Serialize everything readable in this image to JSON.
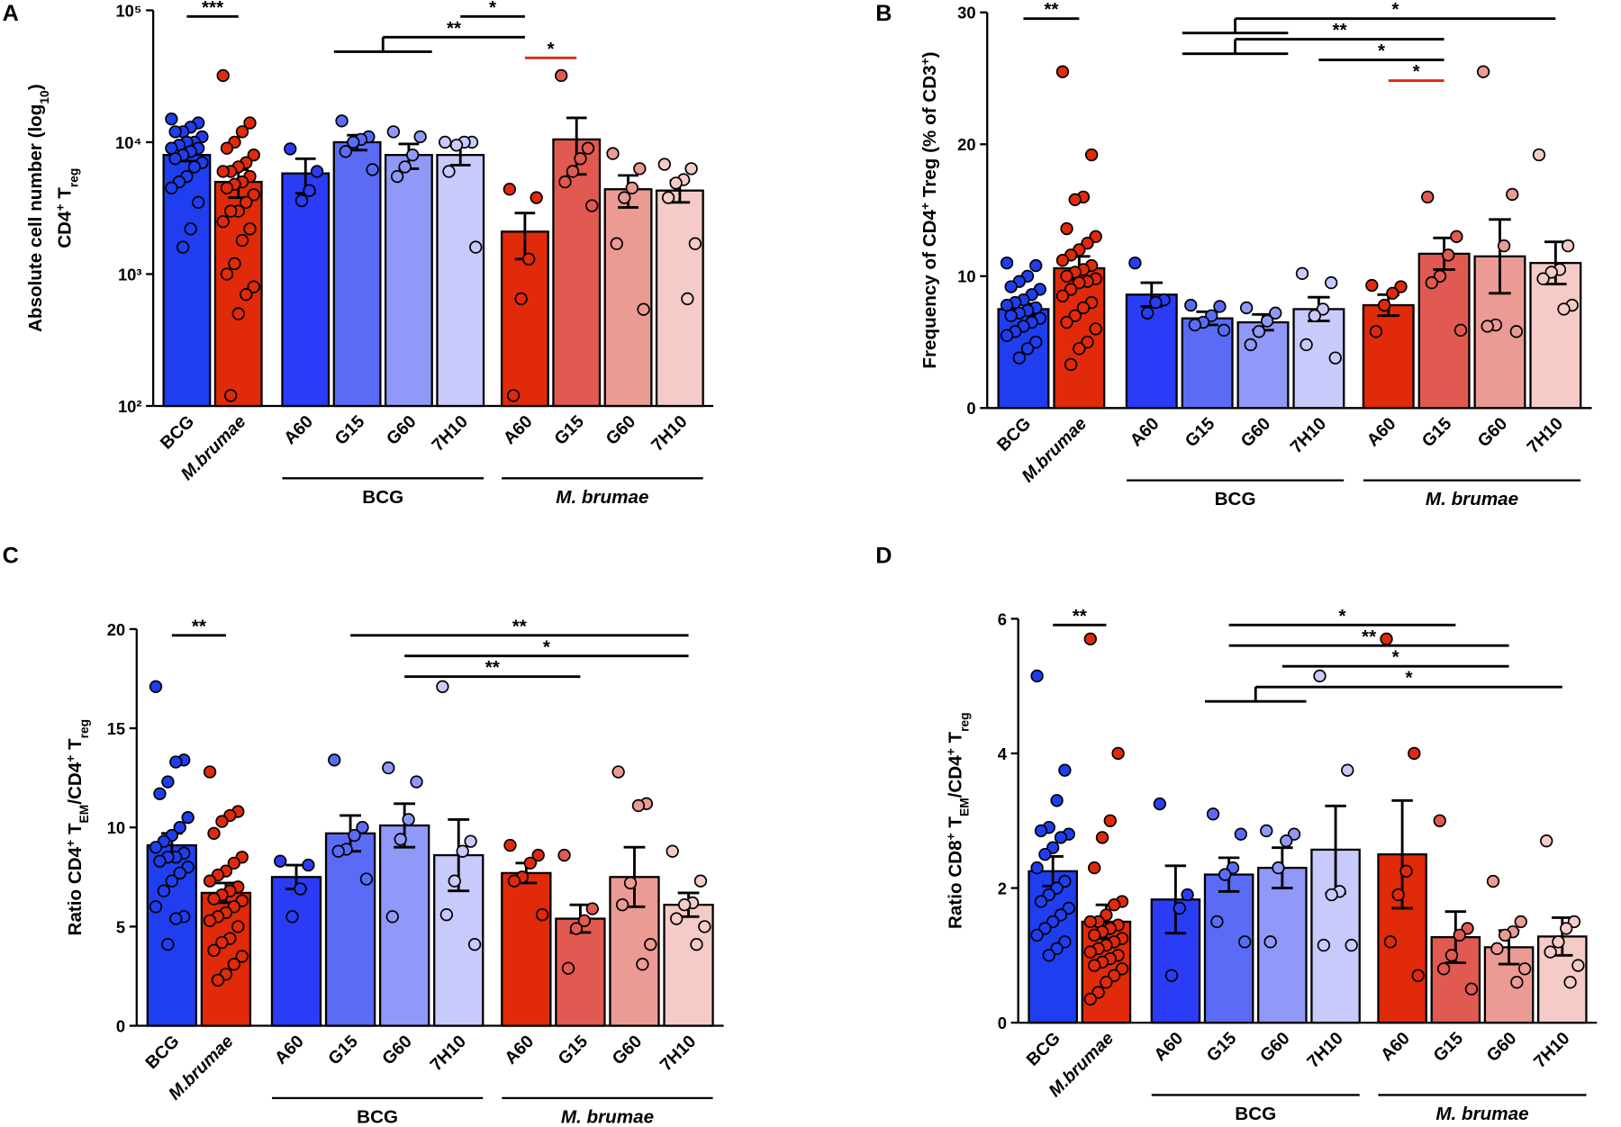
{
  "chart_data": [
    {
      "type": "bar",
      "panel": "A",
      "log": true,
      "ylabel": [
        [
          {
            "text": "Absolute cell number (log"
          },
          {
            "text": "10",
            "script": "sub"
          },
          {
            "text": ")"
          }
        ],
        [
          {
            "text": "CD4"
          },
          {
            "text": "+",
            "script": "sup"
          },
          {
            "text": " T"
          },
          {
            "text": "reg",
            "script": "sub"
          }
        ]
      ],
      "ylim": [
        100,
        100000
      ],
      "yticks": [
        {
          "value": 100,
          "label": "10²"
        },
        {
          "value": 1000,
          "label": "10³"
        },
        {
          "value": 10000,
          "label": "10⁴"
        },
        {
          "value": 100000,
          "label": "10⁵"
        }
      ],
      "categories": [
        "BCG",
        "M.brumae",
        "A60",
        "G15",
        "G60",
        "7H10",
        "A60",
        "G15",
        "G60",
        "7H10"
      ],
      "colors": [
        "#1f3ef0",
        "#e02a0a",
        "#2a3cf5",
        "#5a6cf5",
        "#9098f8",
        "#c8cafb",
        "#e02a0a",
        "#e05a52",
        "#eb9a94",
        "#f5cbc7"
      ],
      "values": [
        8000,
        5000,
        5800,
        10000,
        8000,
        8000,
        2100,
        10500,
        4400,
        4300
      ],
      "errors": [
        800,
        1200,
        1700,
        1300,
        1700,
        1300,
        800,
        4800,
        1200,
        800
      ],
      "points": [
        [
          15000,
          14000,
          13000,
          12000,
          12000,
          11000,
          10000,
          10000,
          9500,
          9000,
          9000,
          8500,
          8000,
          7500,
          7000,
          6500,
          5500,
          5000,
          4500,
          3500,
          2200,
          1600
        ],
        [
          32000,
          14000,
          12000,
          10000,
          9000,
          8000,
          7000,
          6500,
          6000,
          6000,
          5500,
          5000,
          4800,
          4500,
          4000,
          3500,
          3000,
          3000,
          2500,
          2200,
          1800,
          1200,
          1000,
          800,
          700,
          500,
          120
        ],
        [
          8900,
          6000,
          4300,
          3600
        ],
        [
          14500,
          11000,
          10500,
          10000,
          8500,
          6200
        ],
        [
          12000,
          11000,
          8000,
          6500,
          5500
        ],
        [
          10000,
          10000,
          10000,
          9500,
          6000,
          1600
        ],
        [
          4400,
          3800,
          1300,
          650,
          120
        ],
        [
          32000,
          9000,
          7500,
          6000,
          5000,
          3300
        ],
        [
          8200,
          6300,
          4500,
          3800,
          1700,
          540
        ],
        [
          6800,
          6300,
          5200,
          4900,
          3800,
          1700,
          650
        ]
      ],
      "groups": [
        {
          "name": "BCG",
          "span": [
            2,
            5
          ]
        },
        {
          "name": "M. brumae",
          "span": [
            6,
            9
          ]
        }
      ],
      "brackets": [
        {
          "label": "*",
          "from": [
            5
          ],
          "to": [
            6
          ],
          "color": "#000000"
        },
        {
          "label": "**",
          "from": [
            3,
            4
          ],
          "to": [
            6
          ],
          "color": "#000000"
        },
        {
          "label": "***",
          "from": [
            0
          ],
          "to": [
            1
          ],
          "color": "#000000"
        },
        {
          "label": "*",
          "from": [
            6
          ],
          "to": [
            7
          ],
          "color": "#e02a0a"
        }
      ]
    },
    {
      "type": "bar",
      "panel": "B",
      "log": false,
      "ylabel": [
        [
          {
            "text": "Frequency of CD4"
          },
          {
            "text": "+",
            "script": "sup"
          },
          {
            "text": " Treg (% of CD3"
          },
          {
            "text": "+",
            "script": "sup"
          },
          {
            "text": ")"
          }
        ]
      ],
      "ylim": [
        0,
        30
      ],
      "yticks": [
        0,
        10,
        20,
        30
      ],
      "categories": [
        "BCG",
        "M.brumae",
        "A60",
        "G15",
        "G60",
        "7H10",
        "A60",
        "G15",
        "G60",
        "7H10"
      ],
      "colors": [
        "#1f3ef0",
        "#e02a0a",
        "#2a3cf5",
        "#5a6cf5",
        "#9098f8",
        "#c8cafb",
        "#e02a0a",
        "#e05a52",
        "#eb9a94",
        "#f5cbc7"
      ],
      "values": [
        7.5,
        10.6,
        8.6,
        6.8,
        6.5,
        7.5,
        7.8,
        11.7,
        11.5,
        11.0
      ],
      "errors": [
        0.4,
        0.9,
        0.9,
        0.5,
        0.6,
        0.9,
        0.8,
        1.2,
        2.8,
        1.6
      ],
      "points": [
        [
          11,
          10.8,
          10,
          9.6,
          9.2,
          9,
          8.6,
          8.2,
          8,
          7.8,
          7.6,
          7.4,
          7.2,
          7,
          6.8,
          6.5,
          6.2,
          5.8,
          5.5,
          5,
          4.5,
          3.8
        ],
        [
          25.5,
          19.2,
          16,
          15.8,
          13.6,
          13,
          12.5,
          12,
          11.6,
          11.2,
          10.8,
          10.5,
          10.3,
          10,
          9.8,
          9.6,
          9.5,
          9,
          8.5,
          8,
          7.6,
          7,
          6.5,
          6,
          5,
          4.5,
          3.3
        ],
        [
          11,
          8.2,
          8,
          7.2
        ],
        [
          7.8,
          7.7,
          7,
          6.5,
          6.3,
          5.9
        ],
        [
          7.6,
          7.2,
          6.6,
          5.8,
          4.8
        ],
        [
          10.2,
          9.5,
          7.5,
          7,
          4.8,
          3.8
        ],
        [
          9.3,
          9.2,
          8.7,
          7.8,
          5.8
        ],
        [
          16,
          13,
          11.6,
          10,
          9.5,
          5.9
        ],
        [
          25.5,
          16.2,
          12.3,
          6.3,
          6.2,
          5.8
        ],
        [
          19.2,
          12.3,
          10.5,
          10.3,
          9.8,
          7.8,
          7.5
        ]
      ],
      "groups": [
        {
          "name": "BCG",
          "span": [
            2,
            5
          ]
        },
        {
          "name": "M. brumae",
          "span": [
            6,
            9
          ]
        }
      ],
      "brackets": [
        {
          "label": "**",
          "from": [
            0
          ],
          "to": [
            1
          ],
          "color": "#000000"
        },
        {
          "label": "*",
          "from": [
            3,
            4
          ],
          "to": [
            9
          ],
          "color": "#000000"
        },
        {
          "label": "**",
          "from": [
            3,
            4
          ],
          "to": [
            7
          ],
          "color": "#000000"
        },
        {
          "label": "*",
          "from": [
            5
          ],
          "to": [
            7
          ],
          "color": "#000000"
        },
        {
          "label": "*",
          "from": [
            6
          ],
          "to": [
            7
          ],
          "color": "#e02a0a"
        }
      ]
    },
    {
      "type": "bar",
      "panel": "C",
      "log": false,
      "ylabel": [
        [
          {
            "text": "Ratio CD4"
          },
          {
            "text": "+",
            "script": "sup"
          },
          {
            "text": " T"
          },
          {
            "text": "EM",
            "script": "sub"
          },
          {
            "text": "/CD4"
          },
          {
            "text": "+",
            "script": "sup"
          },
          {
            "text": " T"
          },
          {
            "text": "reg",
            "script": "sub"
          }
        ]
      ],
      "ylim": [
        0,
        20
      ],
      "yticks": [
        0,
        5,
        10,
        15,
        20
      ],
      "categories": [
        "BCG",
        "M.brumae",
        "A60",
        "G15",
        "G60",
        "7H10",
        "A60",
        "G15",
        "G60",
        "7H10"
      ],
      "colors": [
        "#1f3ef0",
        "#e02a0a",
        "#2a3cf5",
        "#5a6cf5",
        "#9098f8",
        "#c8cafb",
        "#e02a0a",
        "#e05a52",
        "#eb9a94",
        "#f5cbc7"
      ],
      "values": [
        9.1,
        6.7,
        7.5,
        9.7,
        10.1,
        8.6,
        7.7,
        5.4,
        7.5,
        6.1
      ],
      "errors": [
        0.6,
        0.5,
        0.6,
        0.9,
        1.1,
        1.8,
        0.5,
        0.7,
        1.5,
        0.6
      ],
      "points": [
        [
          17.1,
          13.4,
          13.3,
          12.3,
          11.7,
          10.5,
          10,
          9.6,
          9.3,
          9,
          8.7,
          8.5,
          8.5,
          8.3,
          8,
          7.7,
          7.3,
          6.8,
          6,
          5.5,
          5.4,
          4.1
        ],
        [
          12.8,
          10.8,
          10.6,
          10.3,
          9.7,
          8.5,
          8.2,
          7.8,
          7.6,
          7.3,
          7,
          6.8,
          6.6,
          6.4,
          6.3,
          6,
          5.7,
          5.5,
          5.3,
          5,
          4.4,
          4.2,
          3.8,
          3.5,
          3.1,
          2.6,
          2.3
        ],
        [
          8.3,
          8.1,
          6.9,
          5.5
        ],
        [
          13.4,
          10,
          9.6,
          8.9,
          8.8,
          7.4
        ],
        [
          13,
          12.3,
          10.4,
          9.4,
          5.5
        ],
        [
          17.1,
          9.3,
          8.8,
          7.3,
          5.6,
          4.1
        ],
        [
          9.1,
          8.6,
          8.2,
          7.5,
          7.3,
          5.6
        ],
        [
          8.6,
          5.9,
          5.3,
          4.9,
          2.9
        ],
        [
          12.8,
          11.2,
          11.1,
          7.2,
          6.1,
          4.1,
          3.1
        ],
        [
          8.8,
          7.3,
          6.2,
          6.1,
          5.4,
          5,
          4.1
        ]
      ],
      "groups": [
        {
          "name": "BCG",
          "span": [
            2,
            5
          ]
        },
        {
          "name": "M. brumae",
          "span": [
            6,
            9
          ]
        }
      ],
      "brackets": [
        {
          "label": "**",
          "from": [
            3
          ],
          "to": [
            9
          ],
          "color": "#000000"
        },
        {
          "label": "*",
          "from": [
            4
          ],
          "to": [
            9
          ],
          "color": "#000000"
        },
        {
          "label": "**",
          "from": [
            4
          ],
          "to": [
            7
          ],
          "color": "#000000"
        },
        {
          "label": "**",
          "from": [
            0
          ],
          "to": [
            1
          ],
          "color": "#000000"
        }
      ]
    },
    {
      "type": "bar",
      "panel": "D",
      "log": false,
      "ylabel": [
        [
          {
            "text": "Ratio CD8"
          },
          {
            "text": "+",
            "script": "sup"
          },
          {
            "text": " T"
          },
          {
            "text": "EM",
            "script": "sub"
          },
          {
            "text": "/CD4"
          },
          {
            "text": "+",
            "script": "sup"
          },
          {
            "text": " T"
          },
          {
            "text": "reg",
            "script": "sub"
          }
        ]
      ],
      "ylim": [
        0,
        6
      ],
      "yticks": [
        0,
        2,
        4,
        6
      ],
      "categories": [
        "BCG",
        "M.brumae",
        "A60",
        "G15",
        "G60",
        "7H10",
        "A60",
        "G15",
        "G60",
        "7H10"
      ],
      "colors": [
        "#1f3ef0",
        "#e02a0a",
        "#2a3cf5",
        "#5a6cf5",
        "#9098f8",
        "#c8cafb",
        "#e02a0a",
        "#e05a52",
        "#eb9a94",
        "#f5cbc7"
      ],
      "values": [
        2.25,
        1.5,
        1.83,
        2.2,
        2.3,
        2.57,
        2.5,
        1.27,
        1.12,
        1.28
      ],
      "errors": [
        0.22,
        0.25,
        0.5,
        0.25,
        0.3,
        0.65,
        0.8,
        0.38,
        0.25,
        0.28
      ],
      "points": [
        [
          5.15,
          3.75,
          3.3,
          2.9,
          2.85,
          2.8,
          2.75,
          2.6,
          2.5,
          2.3,
          2.1,
          2,
          1.9,
          1.8,
          1.7,
          1.6,
          1.5,
          1.4,
          1.3,
          1.2,
          1.1,
          1
        ],
        [
          5.7,
          4,
          3,
          2.75,
          2.3,
          1.8,
          1.75,
          1.6,
          1.5,
          1.5,
          1.45,
          1.4,
          1.35,
          1.3,
          1.25,
          1.2,
          1.15,
          1.1,
          1.05,
          1,
          0.95,
          0.9,
          0.85,
          0.8,
          0.7,
          0.6,
          0.45,
          0.35
        ],
        [
          3.25,
          1.9,
          1.7,
          0.7
        ],
        [
          3.1,
          2.8,
          2.3,
          2.2,
          1.5,
          1.2
        ],
        [
          2.85,
          2.8,
          2.7,
          2.3,
          1.2
        ],
        [
          5.15,
          3.75,
          1.95,
          1.9,
          1.15,
          1.15
        ],
        [
          5.7,
          4,
          2.25,
          1.9,
          1.2,
          0.7
        ],
        [
          3,
          1.4,
          1.3,
          1,
          0.8,
          0.5
        ],
        [
          2.1,
          1.5,
          1.35,
          1.3,
          1.1,
          0.8,
          0.6
        ],
        [
          2.7,
          1.5,
          1.4,
          1.2,
          1.05,
          0.85,
          0.6
        ]
      ],
      "groups": [
        {
          "name": "BCG",
          "span": [
            2,
            5
          ]
        },
        {
          "name": "M. brumae",
          "span": [
            6,
            9
          ]
        }
      ],
      "brackets": [
        {
          "label": "*",
          "from": [
            3
          ],
          "to": [
            7
          ],
          "color": "#000000"
        },
        {
          "label": "**",
          "from": [
            3
          ],
          "to": [
            8
          ],
          "color": "#000000"
        },
        {
          "label": "*",
          "from": [
            4
          ],
          "to": [
            8
          ],
          "color": "#000000"
        },
        {
          "label": "*",
          "from": [
            3,
            4
          ],
          "to": [
            9
          ],
          "color": "#000000"
        },
        {
          "label": "**",
          "from": [
            0
          ],
          "to": [
            1
          ],
          "color": "#000000"
        }
      ]
    }
  ]
}
